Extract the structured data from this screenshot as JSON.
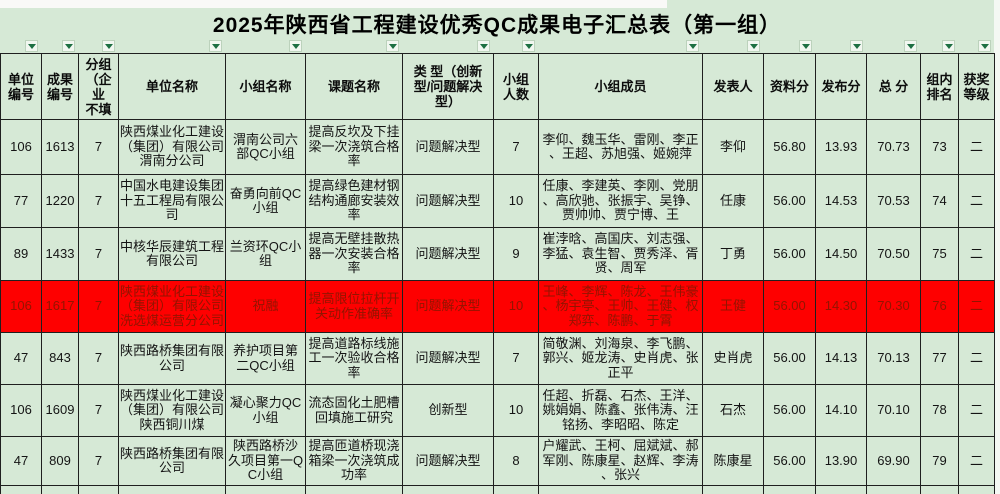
{
  "title": "2025年陕西省工程建设优秀QC成果电子汇总表（第一组）",
  "filter": {
    "icon": "chevron-down-icon",
    "count": 15
  },
  "colors": {
    "background": "#d6e9d6",
    "highlight_row_bg": "#fe0000",
    "highlight_row_text": "#921400",
    "filter_arrow_green": "#1d6f42",
    "grid_border": "#1f1f1f"
  },
  "columns": [
    "单位\n编号",
    "成果\n编号",
    "分组\n（企\n业\n不填",
    "单位名称",
    "小组名称",
    "课题名称",
    "类 型（创新\n型/问题解决\n型）",
    "小组\n人数",
    "小组成员",
    "发表人",
    "资料分",
    "发布分",
    "总  分",
    "组内\n排名",
    "获奖\n等级"
  ],
  "rows": [
    {
      "highlight": false,
      "cells": [
        "106",
        "1613",
        "7",
        "陕西煤业化工建设（集团）有限公司渭南分公司",
        "渭南公司六部QC小组",
        "提高反坎及下挂梁一次浇筑合格率",
        "问题解决型",
        "7",
        "李仰、魏玉华、雷刚、李正、王超、苏旭强、姬婉萍",
        "李仰",
        "56.80",
        "13.93",
        "70.73",
        "73",
        "二"
      ]
    },
    {
      "highlight": false,
      "cells": [
        "77",
        "1220",
        "7",
        "中国水电建设集团十五工程局有限公司",
        "奋勇向前QC小组",
        "提高绿色建材钢结构通廊安装效率",
        "问题解决型",
        "10",
        "任康、李建英、李刚、党朋、高欣驰、张振宇、吴铮、贾帅帅、贾宁博、王",
        "任康",
        "56.00",
        "14.53",
        "70.53",
        "74",
        "二"
      ]
    },
    {
      "highlight": false,
      "cells": [
        "89",
        "1433",
        "7",
        "中核华辰建筑工程有限公司",
        "兰资环QC小组",
        "提高无壁挂散热器一次安装合格率",
        "问题解决型",
        "9",
        "崔浡晗、高国庆、刘志强、李猛、袁生智、贾秀泽、胥贤、周军",
        "丁勇",
        "56.00",
        "14.50",
        "70.50",
        "75",
        "二"
      ]
    },
    {
      "highlight": true,
      "cells": [
        "106",
        "1617",
        "7",
        "陕西煤业化工建设（集团）有限公司洗选煤运营分公司",
        "祝融",
        "提高限位拉杆开关动作准确率",
        "问题解决型",
        "10",
        "王峰、李辉、陈龙、王伟豪、杨宇亭、王帅、王健、权郑弈、陈鹏、于霄",
        "王健",
        "56.00",
        "14.30",
        "70.30",
        "76",
        "二"
      ]
    },
    {
      "highlight": false,
      "cells": [
        "47",
        "843",
        "7",
        "陕西路桥集团有限公司",
        "养护项目第二QC小组",
        "提高道路标线施工一次验收合格率",
        "问题解决型",
        "7",
        "简敬渊、刘海泉、李飞鹏、郭兴、姬龙涛、史肖虎、张正平",
        "史肖虎",
        "56.00",
        "14.13",
        "70.13",
        "77",
        "二"
      ]
    },
    {
      "highlight": false,
      "cells": [
        "106",
        "1609",
        "7",
        "陕西煤业化工建设（集团）有限公司陕西铜川煤",
        "凝心聚力QC小组",
        "流态固化土肥槽回填施工研究",
        "创新型",
        "10",
        "任超、折磊、石杰、王洋、姚娟娟、陈鑫、张伟涛、汪铭扬、李昭昭、陈定",
        "石杰",
        "56.00",
        "14.10",
        "70.10",
        "78",
        "二"
      ]
    },
    {
      "highlight": false,
      "cells": [
        "47",
        "809",
        "7",
        "陕西路桥集团有限公司",
        "陕西路桥沙久项目第一QC小组",
        "提高匝道桥现浇箱梁一次浇筑成功率",
        "问题解决型",
        "8",
        "户耀武、王柯、屈斌斌、郝军刚、陈康星、赵辉、李涛、张兴",
        "陈康星",
        "56.00",
        "13.90",
        "69.90",
        "79",
        "二"
      ]
    },
    {
      "highlight": false,
      "cells": [
        "",
        "",
        "",
        "",
        "",
        "",
        "",
        "",
        "",
        "",
        "",
        "",
        "",
        "",
        ""
      ]
    }
  ]
}
